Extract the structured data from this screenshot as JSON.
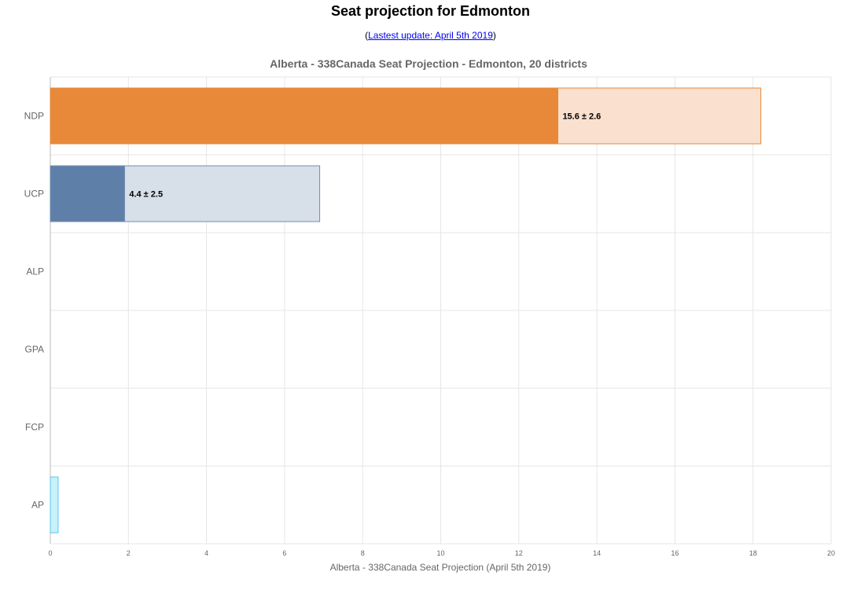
{
  "header": {
    "title": "Seat projection for Edmonton",
    "update_prefix": "(",
    "update_link": "Lastest update: April 5th 2019",
    "update_suffix": ")"
  },
  "chart_data": {
    "type": "bar",
    "orientation": "horizontal",
    "title": "Alberta - 338Canada Seat Projection - Edmonton, 20 districts",
    "xlabel": "Alberta - 338Canada Seat Projection (April 5th 2019)",
    "ylabel": "",
    "xlim": [
      0,
      20
    ],
    "xticks": [
      0,
      2,
      4,
      6,
      8,
      10,
      12,
      14,
      16,
      18,
      20
    ],
    "grid": true,
    "categories": [
      "NDP",
      "UCP",
      "ALP",
      "GPA",
      "FCP",
      "AP"
    ],
    "series": [
      {
        "values": [
          13.0,
          1.9,
          0,
          0,
          0,
          0.2
        ]
      },
      {
        "values": [
          18.2,
          6.9,
          0,
          0,
          0,
          0.2
        ]
      }
    ],
    "data_labels": [
      "15.6 ± 2.6",
      "4.4 ± 2.5",
      "",
      "",
      "",
      ""
    ],
    "colors": {
      "NDP": {
        "solid": "#e8893a",
        "light": "#f9e0cf",
        "border": "#e8893a"
      },
      "UCP": {
        "solid": "#5e7fa8",
        "light": "#d7dfe8",
        "border": "#6f8db3"
      },
      "ALP": {
        "solid": "#ffffff",
        "light": "#ffffff",
        "border": "#ffffff"
      },
      "GPA": {
        "solid": "#ffffff",
        "light": "#ffffff",
        "border": "#ffffff"
      },
      "FCP": {
        "solid": "#ffffff",
        "light": "#ffffff",
        "border": "#ffffff"
      },
      "AP": {
        "solid": "#c9f0fb",
        "light": "#c9f0fb",
        "border": "#57c9e8"
      }
    }
  }
}
